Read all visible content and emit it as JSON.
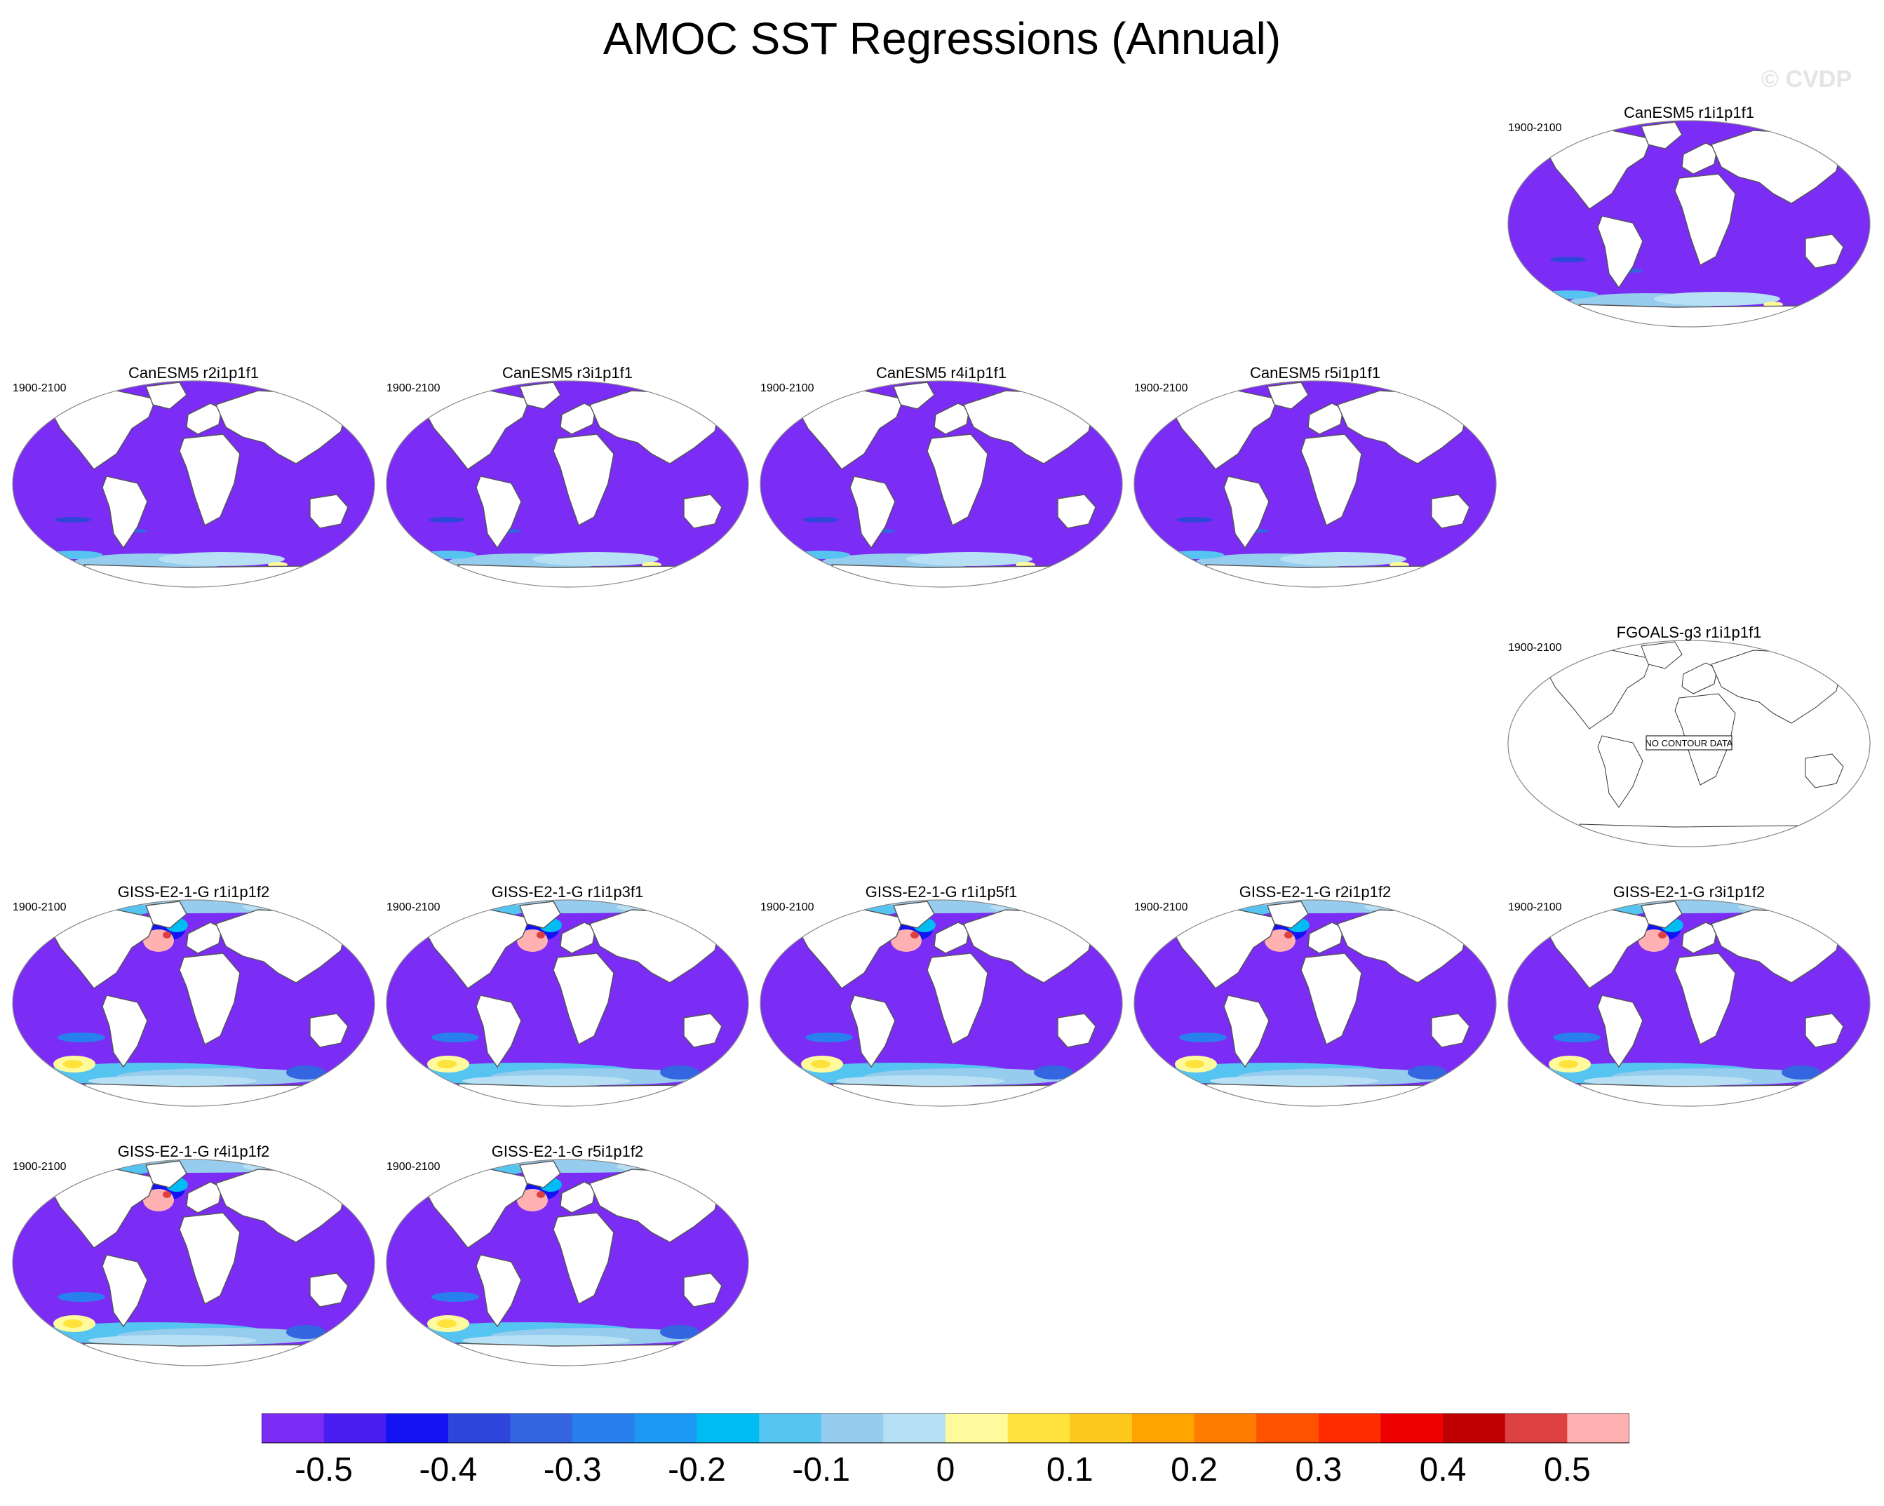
{
  "title": "AMOC SST Regressions (Annual)",
  "watermark": "© CVDP",
  "period": "1900-2100",
  "no_data_label": "NO CONTOUR DATA",
  "chart_data": {
    "type": "heatmap",
    "title": "AMOC SST Regressions (Annual)",
    "colorbar": {
      "levels": [
        -0.55,
        -0.5,
        -0.45,
        -0.4,
        -0.35,
        -0.3,
        -0.25,
        -0.2,
        -0.15,
        -0.1,
        -0.05,
        0,
        0.05,
        0.1,
        0.15,
        0.2,
        0.25,
        0.3,
        0.35,
        0.4,
        0.45,
        0.5,
        0.55
      ],
      "tick_labels": [
        "-0.5",
        "-0.4",
        "-0.3",
        "-0.2",
        "-0.1",
        "0",
        "0.1",
        "0.2",
        "0.3",
        "0.4",
        "0.5"
      ],
      "colors": [
        "#7b2cf5",
        "#4a1ef0",
        "#1414f2",
        "#2e46dc",
        "#3366e0",
        "#2880ee",
        "#1c98f5",
        "#00bcf5",
        "#55c4f0",
        "#96ccee",
        "#b8e0f4",
        "#fffa9c",
        "#ffe23c",
        "#ffc81c",
        "#ffa400",
        "#ff7c00",
        "#ff5200",
        "#ff2c00",
        "#ee0000",
        "#c00000",
        "#dc4040",
        "#ffb0b0"
      ]
    },
    "panels": [
      {
        "title": "CanESM5 r1i1p1f1",
        "period": "1900-2100",
        "has_data": true,
        "pattern": "canesm"
      },
      {
        "title": "CanESM5 r2i1p1f1",
        "period": "1900-2100",
        "has_data": true,
        "pattern": "canesm"
      },
      {
        "title": "CanESM5 r3i1p1f1",
        "period": "1900-2100",
        "has_data": true,
        "pattern": "canesm"
      },
      {
        "title": "CanESM5 r4i1p1f1",
        "period": "1900-2100",
        "has_data": true,
        "pattern": "canesm"
      },
      {
        "title": "CanESM5 r5i1p1f1",
        "period": "1900-2100",
        "has_data": true,
        "pattern": "canesm"
      },
      {
        "title": "FGOALS-g3 r1i1p1f1",
        "period": "1900-2100",
        "has_data": false,
        "pattern": "none"
      },
      {
        "title": "GISS-E2-1-G r1i1p1f2",
        "period": "1900-2100",
        "has_data": true,
        "pattern": "giss"
      },
      {
        "title": "GISS-E2-1-G r1i1p3f1",
        "period": "1900-2100",
        "has_data": true,
        "pattern": "giss"
      },
      {
        "title": "GISS-E2-1-G r1i1p5f1",
        "period": "1900-2100",
        "has_data": true,
        "pattern": "giss"
      },
      {
        "title": "GISS-E2-1-G r2i1p1f2",
        "period": "1900-2100",
        "has_data": true,
        "pattern": "giss"
      },
      {
        "title": "GISS-E2-1-G r3i1p1f2",
        "period": "1900-2100",
        "has_data": true,
        "pattern": "giss"
      },
      {
        "title": "GISS-E2-1-G r4i1p1f2",
        "period": "1900-2100",
        "has_data": true,
        "pattern": "giss"
      },
      {
        "title": "GISS-E2-1-G r5i1p1f2",
        "period": "1900-2100",
        "has_data": true,
        "pattern": "giss"
      }
    ]
  }
}
